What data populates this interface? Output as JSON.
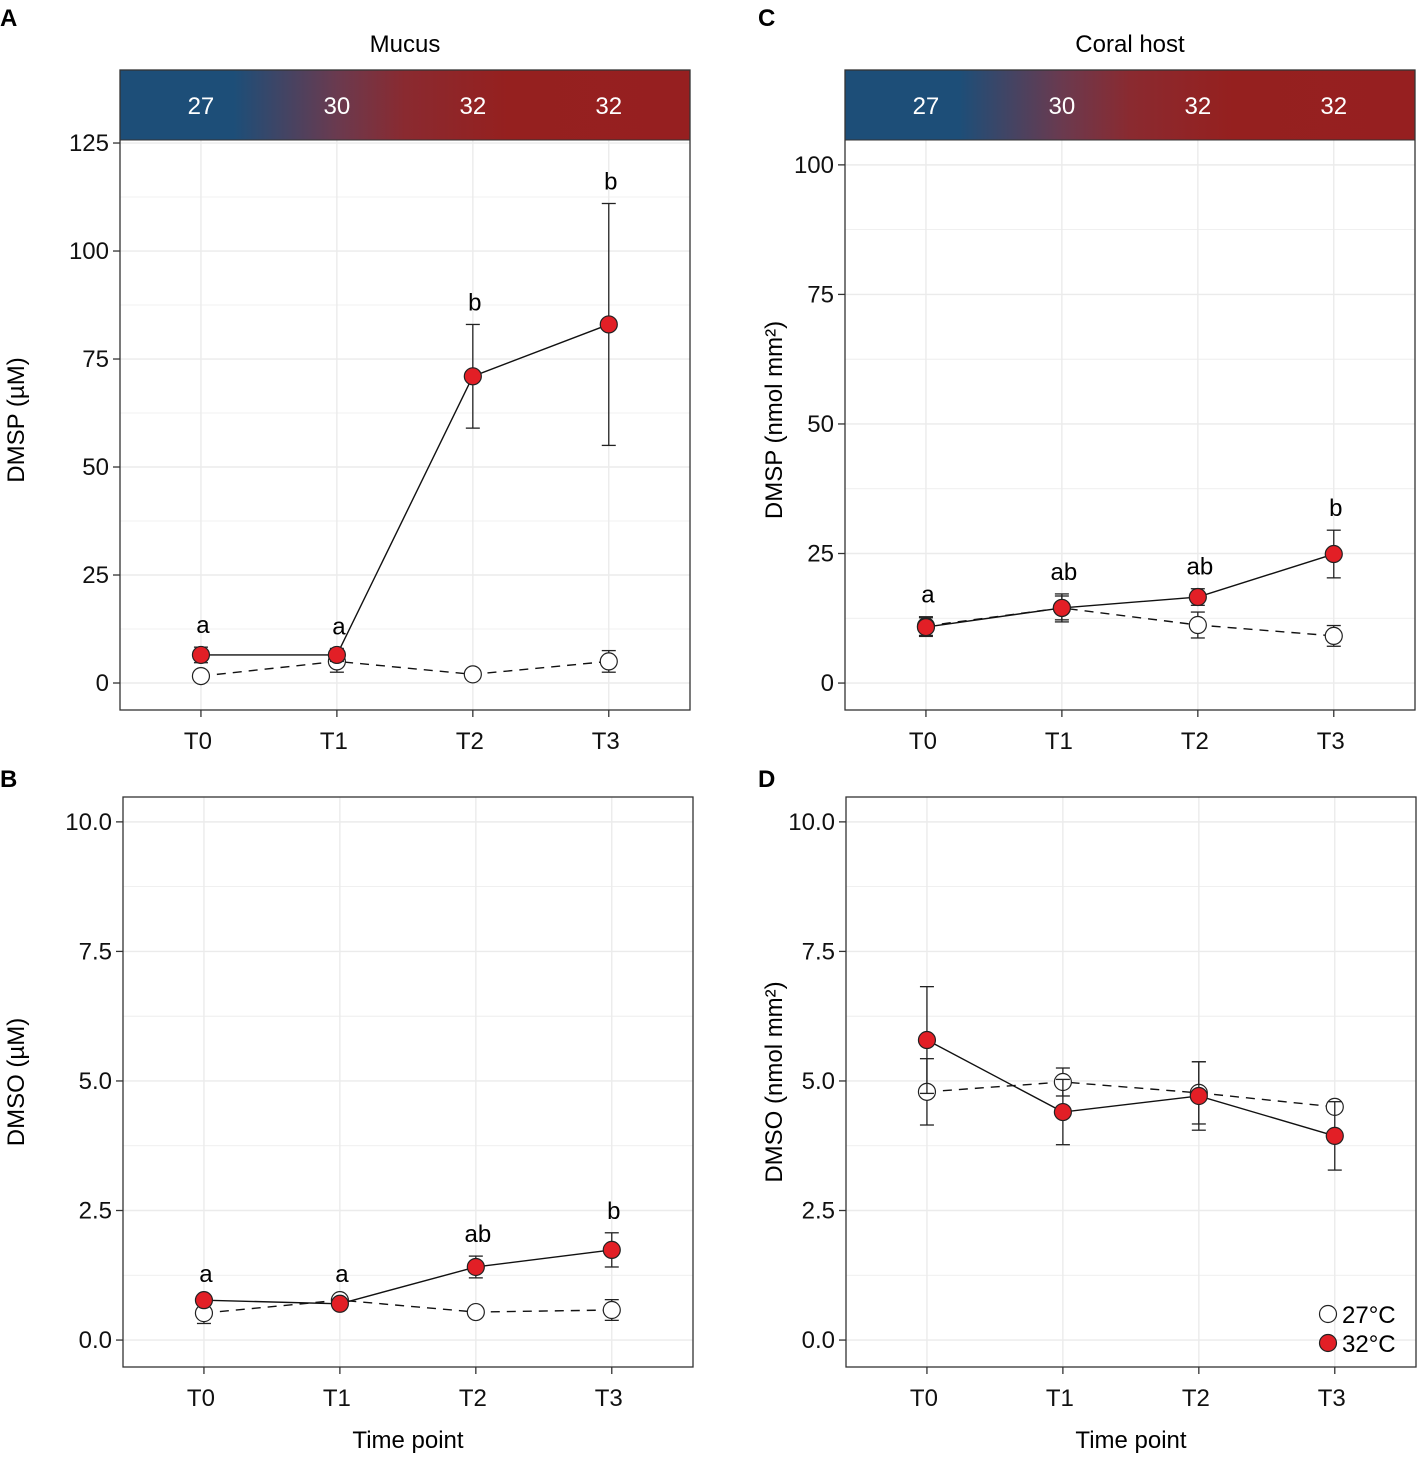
{
  "chart_data": [
    {
      "panel": "A",
      "type": "line",
      "title": "Mucus",
      "header_temps": [
        "27",
        "30",
        "32",
        "32"
      ],
      "categories": [
        "T0",
        "T1",
        "T2",
        "T3"
      ],
      "xlabel": "",
      "ylabel": "DMSP (µM)",
      "ylim": [
        -6.25,
        125.7
      ],
      "yticks": [
        0,
        25,
        50,
        75,
        100,
        125
      ],
      "ytick_labels": [
        "0",
        "25",
        "50",
        "75",
        "100",
        "125"
      ],
      "series": [
        {
          "name": "27°C",
          "values": [
            1.6,
            5,
            2,
            5
          ],
          "errors": [
            0.8,
            2.5,
            0.8,
            2.5
          ]
        },
        {
          "name": "32°C",
          "values": [
            6.5,
            6.5,
            71,
            83
          ],
          "errors": [
            1.8,
            1.5,
            12,
            28
          ]
        }
      ],
      "letters": [
        "a",
        "a",
        "b",
        "b"
      ]
    },
    {
      "panel": "B",
      "type": "line",
      "title": "",
      "categories": [
        "T0",
        "T1",
        "T2",
        "T3"
      ],
      "xlabel": "Time point",
      "ylabel": "DMSO (µM)",
      "ylim": [
        -0.52,
        10.48
      ],
      "yticks": [
        0,
        2.5,
        5,
        7.5,
        10
      ],
      "ytick_labels": [
        "0.0",
        "2.5",
        "5.0",
        "7.5",
        "10.0"
      ],
      "series": [
        {
          "name": "27°C",
          "values": [
            0.52,
            0.77,
            0.54,
            0.58
          ],
          "errors": [
            0.2,
            0.08,
            0.05,
            0.2
          ]
        },
        {
          "name": "32°C",
          "values": [
            0.77,
            0.7,
            1.41,
            1.74
          ],
          "errors": [
            0.08,
            0.05,
            0.21,
            0.33
          ]
        }
      ],
      "letters": [
        "a",
        "a",
        "ab",
        "b"
      ]
    },
    {
      "panel": "C",
      "type": "line",
      "title": "Coral host",
      "header_temps": [
        "27",
        "30",
        "32",
        "32"
      ],
      "categories": [
        "T0",
        "T1",
        "T2",
        "T3"
      ],
      "xlabel": "",
      "ylabel": "DMSP (nmol mm²)",
      "ylim": [
        -5.2,
        104.8
      ],
      "yticks": [
        0,
        25,
        50,
        75,
        100
      ],
      "ytick_labels": [
        "0",
        "25",
        "50",
        "75",
        "100"
      ],
      "series": [
        {
          "name": "27°C",
          "values": [
            11,
            14.5,
            11.2,
            9.1
          ],
          "errors": [
            1.8,
            2.7,
            2.5,
            2
          ]
        },
        {
          "name": "32°C",
          "values": [
            10.8,
            14.5,
            16.6,
            24.9
          ],
          "errors": [
            1.8,
            2.3,
            1.6,
            4.6
          ]
        }
      ],
      "letters": [
        "a",
        "ab",
        "ab",
        "b"
      ]
    },
    {
      "panel": "D",
      "type": "line",
      "title": "",
      "categories": [
        "T0",
        "T1",
        "T2",
        "T3"
      ],
      "xlabel": "Time point",
      "ylabel": "DMSO (nmol mm²)",
      "ylim": [
        -0.52,
        10.48
      ],
      "yticks": [
        0,
        2.5,
        5,
        7.5,
        10
      ],
      "ytick_labels": [
        "0.0",
        "2.5",
        "5.0",
        "7.5",
        "10.0"
      ],
      "series": [
        {
          "name": "27°C",
          "values": [
            4.79,
            4.98,
            4.77,
            4.5
          ],
          "errors": [
            0.64,
            0.27,
            0.6,
            0.1
          ]
        },
        {
          "name": "32°C",
          "values": [
            5.79,
            4.4,
            4.71,
            3.94
          ],
          "errors": [
            1.03,
            0.63,
            0.66,
            0.66
          ]
        }
      ],
      "letters": [
        "",
        "",
        "",
        ""
      ],
      "legend": {
        "position": "bottom-right",
        "entries": [
          "27°C",
          "32°C"
        ]
      }
    }
  ],
  "colors": {
    "warm": "#e21f26",
    "control": "#ffffff",
    "header_cold": "#1d4e78",
    "header_hot": "#95201f"
  }
}
